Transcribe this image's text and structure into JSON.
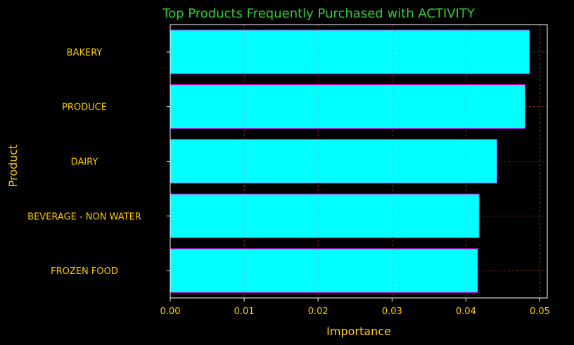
{
  "chart_data": {
    "type": "bar",
    "orientation": "horizontal",
    "title": "Top Products Frequently Purchased with ACTIVITY",
    "xlabel": "Importance",
    "ylabel": "Product",
    "categories": [
      "BAKERY",
      "PRODUCE",
      "DAIRY",
      "BEVERAGE - NON WATER",
      "FROZEN FOOD"
    ],
    "values": [
      0.0486,
      0.048,
      0.0442,
      0.0418,
      0.0416
    ],
    "xlim": [
      0,
      0.051
    ],
    "xticks": [
      0.0,
      0.01,
      0.02,
      0.03,
      0.04,
      0.05
    ],
    "xtick_labels": [
      "0.00",
      "0.01",
      "0.02",
      "0.03",
      "0.04",
      "0.05"
    ],
    "grid": true,
    "colors": {
      "background": "#000000",
      "bar_fill": "#00ffff",
      "bar_edge": "#ff00ff",
      "grid": "#ff4040",
      "title": "#33cc33",
      "label": "#ffcc00",
      "axis": "#ffffff"
    }
  }
}
